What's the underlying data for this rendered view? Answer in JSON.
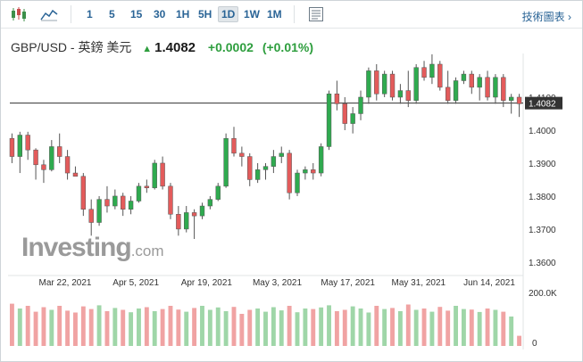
{
  "toolbar": {
    "timeframes": [
      "1",
      "5",
      "15",
      "30",
      "1H",
      "5H",
      "1D",
      "1W",
      "1M"
    ],
    "active_timeframe": "1D",
    "tech_chart_label": "技術圖表",
    "icons": [
      "candlestick-chart-icon",
      "area-chart-icon",
      "document-icon",
      "chevron-right-icon"
    ]
  },
  "header": {
    "pair": "GBP/USD - 英鎊 美元",
    "price": "1.4082",
    "change": "+0.0002",
    "change_pct": "(+0.01%)",
    "arrow_icon": "up-arrow-icon",
    "up_color": "#2e9e3e"
  },
  "watermark": {
    "brand": "Investing",
    "suffix": ".com"
  },
  "colors": {
    "up": "#2faa4f",
    "down": "#e35b5b",
    "vol_up": "#9fd6a8",
    "vol_down": "#f0a3a3",
    "price_line": "#333333"
  },
  "chart_data": {
    "type": "candlestick",
    "y_ticks": [
      "1.4100",
      "1.4000",
      "1.3900",
      "1.3800",
      "1.3700",
      "1.3600"
    ],
    "ylim": [
      1.357,
      1.42
    ],
    "x_tick_labels": [
      "Mar 22, 2021",
      "Apr 5, 2021",
      "Apr 19, 2021",
      "May 3, 2021",
      "May 17, 2021",
      "May 31, 2021",
      "Jun 14, 2021"
    ],
    "current_price_label": "1.4082",
    "current_price": 1.4082,
    "volume_tick_labels": [
      "200.0K",
      "0"
    ],
    "volume_max": 200000,
    "ohlc": [
      [
        1.3975,
        1.399,
        1.39,
        1.392
      ],
      [
        1.392,
        1.3995,
        1.387,
        1.3985
      ],
      [
        1.3985,
        1.3995,
        1.391,
        1.394
      ],
      [
        1.394,
        1.3945,
        1.385,
        1.3895
      ],
      [
        1.3895,
        1.391,
        1.384,
        1.388
      ],
      [
        1.388,
        1.397,
        1.3875,
        1.395
      ],
      [
        1.395,
        1.399,
        1.39,
        1.392
      ],
      [
        1.392,
        1.394,
        1.385,
        1.387
      ],
      [
        1.387,
        1.389,
        1.386,
        1.386
      ],
      [
        1.386,
        1.387,
        1.374,
        1.376
      ],
      [
        1.376,
        1.379,
        1.368,
        1.372
      ],
      [
        1.372,
        1.38,
        1.371,
        1.379
      ],
      [
        1.379,
        1.383,
        1.375,
        1.377
      ],
      [
        1.377,
        1.382,
        1.376,
        1.38
      ],
      [
        1.38,
        1.381,
        1.374,
        1.376
      ],
      [
        1.376,
        1.38,
        1.3745,
        1.3785
      ],
      [
        1.3785,
        1.384,
        1.378,
        1.383
      ],
      [
        1.383,
        1.385,
        1.381,
        1.3825
      ],
      [
        1.3825,
        1.391,
        1.382,
        1.39
      ],
      [
        1.39,
        1.392,
        1.382,
        1.383
      ],
      [
        1.383,
        1.384,
        1.373,
        1.3745
      ],
      [
        1.3745,
        1.377,
        1.368,
        1.37
      ],
      [
        1.37,
        1.377,
        1.369,
        1.375
      ],
      [
        1.375,
        1.376,
        1.367,
        1.374
      ],
      [
        1.374,
        1.378,
        1.373,
        1.377
      ],
      [
        1.377,
        1.38,
        1.376,
        1.379
      ],
      [
        1.379,
        1.384,
        1.3785,
        1.383
      ],
      [
        1.383,
        1.399,
        1.3825,
        1.3975
      ],
      [
        1.3975,
        1.401,
        1.392,
        1.393
      ],
      [
        1.393,
        1.395,
        1.389,
        1.392
      ],
      [
        1.392,
        1.393,
        1.383,
        1.385
      ],
      [
        1.385,
        1.39,
        1.384,
        1.388
      ],
      [
        1.388,
        1.39,
        1.385,
        1.389
      ],
      [
        1.389,
        1.394,
        1.387,
        1.392
      ],
      [
        1.392,
        1.395,
        1.39,
        1.393
      ],
      [
        1.393,
        1.394,
        1.379,
        1.381
      ],
      [
        1.381,
        1.388,
        1.38,
        1.387
      ],
      [
        1.387,
        1.389,
        1.385,
        1.388
      ],
      [
        1.388,
        1.39,
        1.385,
        1.387
      ],
      [
        1.387,
        1.396,
        1.386,
        1.395
      ],
      [
        1.395,
        1.412,
        1.394,
        1.411
      ],
      [
        1.411,
        1.415,
        1.406,
        1.408
      ],
      [
        1.408,
        1.41,
        1.4,
        1.402
      ],
      [
        1.402,
        1.407,
        1.399,
        1.405
      ],
      [
        1.405,
        1.412,
        1.403,
        1.41
      ],
      [
        1.41,
        1.419,
        1.408,
        1.418
      ],
      [
        1.418,
        1.42,
        1.409,
        1.411
      ],
      [
        1.411,
        1.418,
        1.41,
        1.417
      ],
      [
        1.417,
        1.418,
        1.409,
        1.41
      ],
      [
        1.41,
        1.414,
        1.408,
        1.412
      ],
      [
        1.412,
        1.418,
        1.407,
        1.409
      ],
      [
        1.409,
        1.42,
        1.408,
        1.419
      ],
      [
        1.419,
        1.421,
        1.415,
        1.416
      ],
      [
        1.416,
        1.423,
        1.414,
        1.42
      ],
      [
        1.42,
        1.421,
        1.412,
        1.413
      ],
      [
        1.413,
        1.418,
        1.408,
        1.409
      ],
      [
        1.409,
        1.416,
        1.408,
        1.415
      ],
      [
        1.415,
        1.418,
        1.414,
        1.417
      ],
      [
        1.417,
        1.418,
        1.411,
        1.413
      ],
      [
        1.413,
        1.417,
        1.409,
        1.416
      ],
      [
        1.416,
        1.418,
        1.409,
        1.41
      ],
      [
        1.41,
        1.417,
        1.408,
        1.416
      ],
      [
        1.416,
        1.417,
        1.407,
        1.409
      ],
      [
        1.409,
        1.411,
        1.405,
        1.41
      ],
      [
        1.41,
        1.411,
        1.404,
        1.408
      ]
    ],
    "volume": [
      158000,
      140000,
      150000,
      128000,
      145000,
      135000,
      150000,
      132000,
      125000,
      148000,
      138000,
      152000,
      130000,
      142000,
      135000,
      126000,
      140000,
      145000,
      130000,
      138000,
      150000,
      136000,
      128000,
      142000,
      150000,
      135000,
      144000,
      130000,
      146000,
      120000,
      135000,
      140000,
      128000,
      145000,
      133000,
      150000,
      126000,
      140000,
      138000,
      144000,
      152000,
      130000,
      135000,
      148000,
      140000,
      125000,
      150000,
      138000,
      142000,
      130000,
      155000,
      135000,
      140000,
      128000,
      146000,
      132000,
      150000,
      138000,
      136000,
      127000,
      140000,
      135000,
      128000,
      110000,
      38000
    ]
  }
}
